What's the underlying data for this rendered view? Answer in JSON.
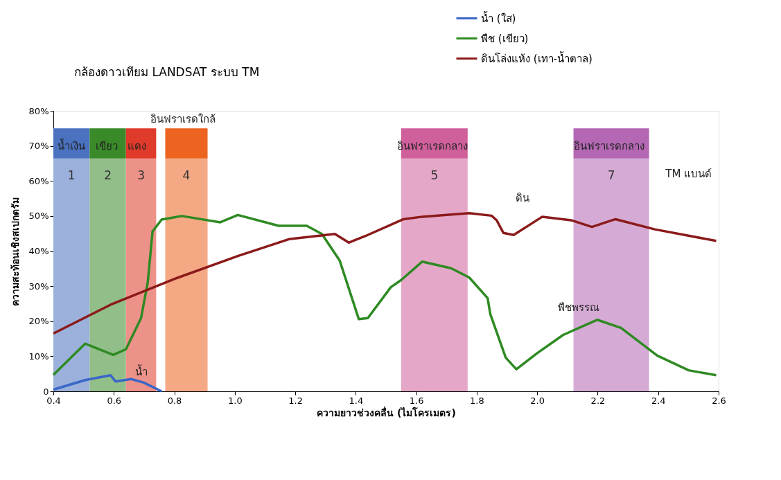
{
  "chart_data": {
    "type": "line",
    "title": "กล้องดาวเทียม LANDSAT ระบบ TM",
    "xlabel": "ความยาวช่วงคลื่น (ไมโครเมตร)",
    "ylabel": "ความสะท้อนเชิงสเปกตรัม",
    "xlim": [
      0.4,
      2.6
    ],
    "ylim": [
      0,
      80
    ],
    "xticks": [
      0.4,
      0.6,
      0.8,
      {
        "value": 1.0,
        "label": "1.0"
      },
      1.2,
      1.4,
      1.6,
      1.8,
      {
        "value": 2.0,
        "label": "2.0"
      },
      2.2,
      2.4,
      2.6
    ],
    "yticks": [
      0,
      {
        "value": 10,
        "label": "10%"
      },
      {
        "value": 20,
        "label": "20%"
      },
      {
        "value": 30,
        "label": "30%"
      },
      {
        "value": 40,
        "label": "40%"
      },
      {
        "value": 50,
        "label": "50%"
      },
      {
        "value": 60,
        "label": "60%"
      },
      {
        "value": 70,
        "label": "70%"
      },
      {
        "value": 80,
        "label": "80%"
      }
    ],
    "grid": false,
    "legend": "top right",
    "marker": "none",
    "line_style": "solid",
    "series": [
      {
        "name": "น้ำ (ใส)",
        "color": "#3a66c8",
        "x": [
          0.4,
          0.505,
          0.589,
          0.606,
          0.657,
          0.699,
          0.758
        ],
        "values": [
          0.5,
          3.2,
          4.6,
          2.8,
          3.5,
          2.5,
          0
        ]
      },
      {
        "name": "พืช (เขียว)",
        "color": "#2e8a22",
        "x": [
          0.4,
          0.505,
          0.598,
          0.64,
          0.69,
          0.712,
          0.728,
          0.758,
          0.825,
          0.952,
          1.01,
          1.145,
          1.238,
          1.288,
          1.347,
          1.39,
          1.41,
          1.44,
          1.516,
          1.551,
          1.62,
          1.715,
          1.775,
          1.836,
          1.845,
          1.896,
          1.931,
          2.0,
          2.086,
          2.199,
          2.277,
          2.397,
          2.501,
          2.592
        ],
        "values": [
          4.7,
          13.6,
          10.4,
          12.0,
          20.9,
          31,
          45.6,
          49,
          50.0,
          48.2,
          50.3,
          47.2,
          47.2,
          44.9,
          37.3,
          25.9,
          20.6,
          20.9,
          29.7,
          31.8,
          37.0,
          35.1,
          32.5,
          26.6,
          22.0,
          9.6,
          6.3,
          10.9,
          16.1,
          20.4,
          18.1,
          10.2,
          6.0,
          4.6
        ]
      },
      {
        "name": "ดินโล่งแห้ง (เทา-น้ำตาล)",
        "color": "#8b1a1a",
        "x": [
          0.4,
          0.589,
          0.808,
          1.01,
          1.179,
          1.331,
          1.377,
          1.432,
          1.558,
          1.62,
          1.775,
          1.849,
          1.866,
          1.888,
          1.922,
          2.017,
          2.112,
          2.181,
          2.259,
          2.389,
          2.592
        ],
        "values": [
          16.5,
          24.7,
          32.3,
          38.6,
          43.4,
          44.9,
          42.4,
          44.3,
          49.1,
          49.8,
          50.8,
          50.1,
          48.8,
          45.2,
          44.6,
          49.8,
          48.8,
          46.9,
          49.1,
          46.2,
          42.9
        ]
      }
    ],
    "bands": [
      {
        "axis": "x",
        "from": 0.4,
        "to": 0.52,
        "label": "1",
        "color": "#4a72c0"
      },
      {
        "axis": "x",
        "from": 0.52,
        "to": 0.64,
        "label": "2",
        "color": "#3a8a2a"
      },
      {
        "axis": "x",
        "from": 0.64,
        "to": 0.74,
        "label": "3",
        "color": "#e03a2a"
      },
      {
        "axis": "x",
        "from": 0.77,
        "to": 0.91,
        "label": "4",
        "color": "#ec6420"
      },
      {
        "axis": "x",
        "from": 1.55,
        "to": 1.77,
        "label": "5",
        "color": "#d0609c"
      },
      {
        "axis": "x",
        "from": 2.12,
        "to": 2.37,
        "label": "7",
        "color": "#b468b4"
      }
    ],
    "annotations": [
      "น้ำเงิน",
      "เขียว",
      "แดง",
      "อินฟราเรดใกล้",
      "อินฟราเรดกลาง",
      "อินฟราเรดกลาง",
      "TM แบนด์",
      "น้ำ",
      "ดิน",
      "พืชพรรณ"
    ]
  }
}
